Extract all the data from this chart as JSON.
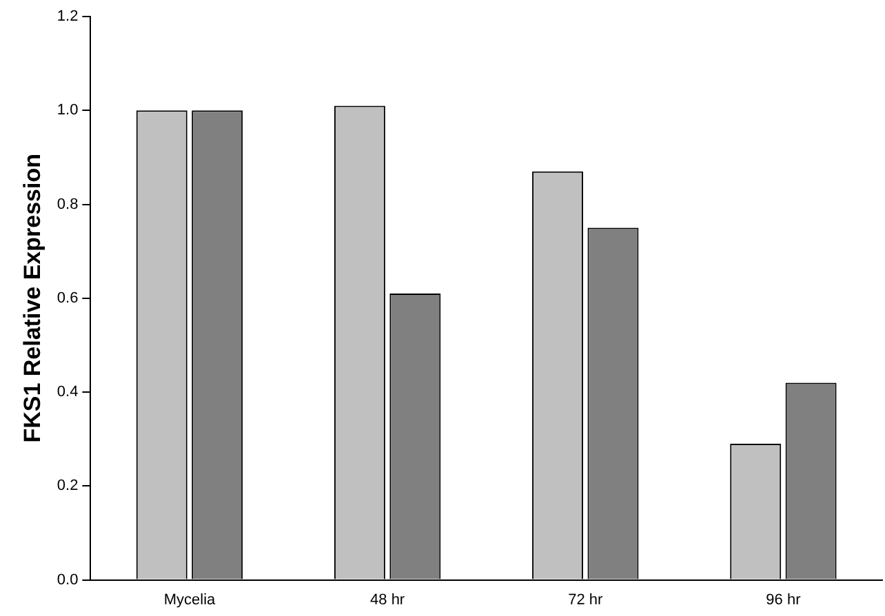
{
  "chart_data": {
    "type": "bar",
    "ylabel": "FKS1 Relative Expression",
    "categories": [
      "Mycelia",
      "48 hr",
      "72 hr",
      "96 hr"
    ],
    "series": [
      {
        "color": "#c0c0c0",
        "values": [
          1.0,
          1.01,
          0.87,
          0.29
        ]
      },
      {
        "color": "#808080",
        "values": [
          1.0,
          0.61,
          0.75,
          0.42
        ]
      }
    ],
    "ylim": [
      0,
      1.2
    ],
    "yticks": [
      {
        "value": 0,
        "label": "0.0"
      },
      0.2,
      0.4,
      0.6,
      0.8,
      {
        "value": 1,
        "label": "1.0"
      },
      1.2
    ],
    "grid": false,
    "legend": false
  }
}
